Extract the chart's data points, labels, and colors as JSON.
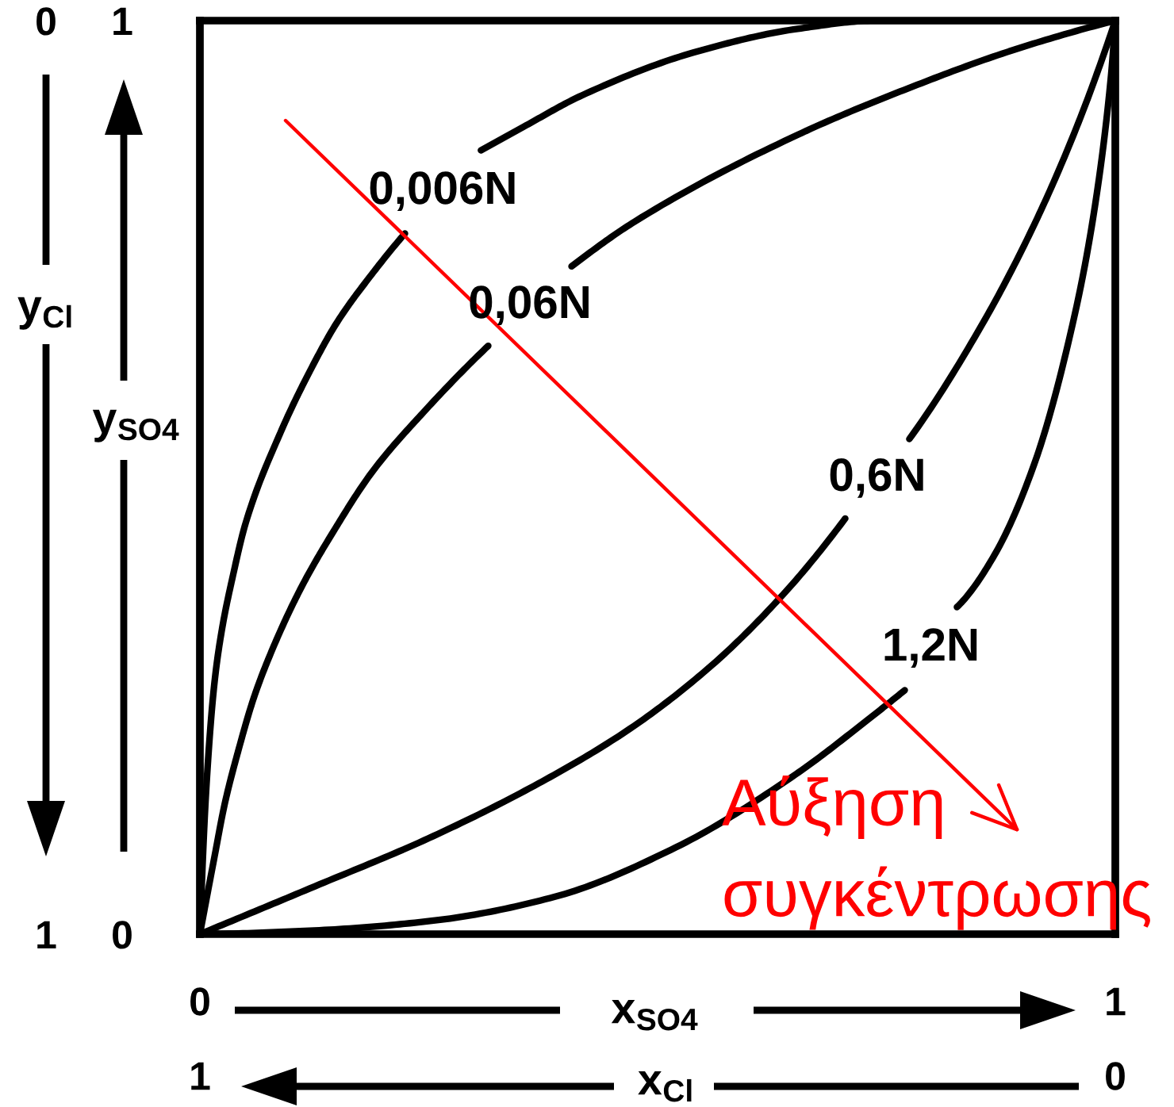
{
  "chart_data": {
    "type": "line",
    "xlabel": "x$_{SO4}$",
    "ylabel": "y$_{SO4}$",
    "x2label": "x$_{Cl}$",
    "y2label": "y$_{Cl}$",
    "xlim": [
      0,
      1
    ],
    "xticks": [
      0,
      1
    ],
    "ylim": [
      0,
      1
    ],
    "yticks": [
      0,
      1
    ],
    "x2lim": [
      1,
      0
    ],
    "x2ticks": [
      1,
      0
    ],
    "y2lim": [
      1,
      0
    ],
    "y2ticks": [
      1,
      0
    ],
    "marker": "none",
    "line_style": "solid",
    "legend": false,
    "annotations": [
      "Αύξηση\nσυγκέντρωσης"
    ],
    "series": [
      {
        "name": "0,006N",
        "color": "#000000",
        "x": [
          0,
          0.007,
          0.016,
          0.024,
          0.036,
          0.05,
          0.088,
          0.12,
          0.15,
          0.186,
          0.224,
          null,
          0.307,
          0.354,
          0.417,
          0.539,
          0.653,
          0.74,
          1
        ],
        "values": [
          0,
          0.16,
          0.276,
          0.333,
          0.392,
          0.45,
          0.549,
          0.616,
          0.67,
          0.72,
          0.767,
          null,
          0.858,
          0.884,
          0.918,
          0.965,
          0.991,
          1,
          1
        ]
      },
      {
        "name": "0,06N",
        "color": "#000000",
        "x": [
          0,
          0.016,
          0.027,
          0.042,
          0.059,
          0.081,
          0.111,
          0.146,
          0.189,
          0.244,
          0.315,
          null,
          0.406,
          0.475,
          0.653,
          0.769,
          0.886,
          1
        ],
        "values": [
          0,
          0.085,
          0.142,
          0.201,
          0.259,
          0.316,
          0.38,
          0.441,
          0.507,
          0.571,
          0.644,
          null,
          0.731,
          0.78,
          0.875,
          0.924,
          0.967,
          1
        ]
      },
      {
        "name": "0,6N",
        "color": "#000000",
        "x": [
          0,
          0.12,
          0.25,
          0.37,
          0.47,
          0.56,
          0.64,
          0.705,
          null,
          0.775,
          0.856,
          0.913,
          0.96,
          1
        ],
        "values": [
          0,
          0.05,
          0.105,
          0.165,
          0.225,
          0.295,
          0.375,
          0.455,
          null,
          0.542,
          0.67,
          0.78,
          0.889,
          1
        ]
      },
      {
        "name": "1,2N",
        "color": "#000000",
        "x": [
          0,
          0.125,
          0.257,
          0.388,
          0.52,
          0.651,
          0.73,
          0.77,
          null,
          0.827,
          0.868,
          0.913,
          0.955,
          0.977,
          0.995,
          1
        ],
        "values": [
          0,
          0.004,
          0.015,
          0.041,
          0.095,
          0.175,
          0.235,
          0.267,
          null,
          0.358,
          0.415,
          0.519,
          0.675,
          0.792,
          0.936,
          1
        ]
      }
    ]
  }
}
